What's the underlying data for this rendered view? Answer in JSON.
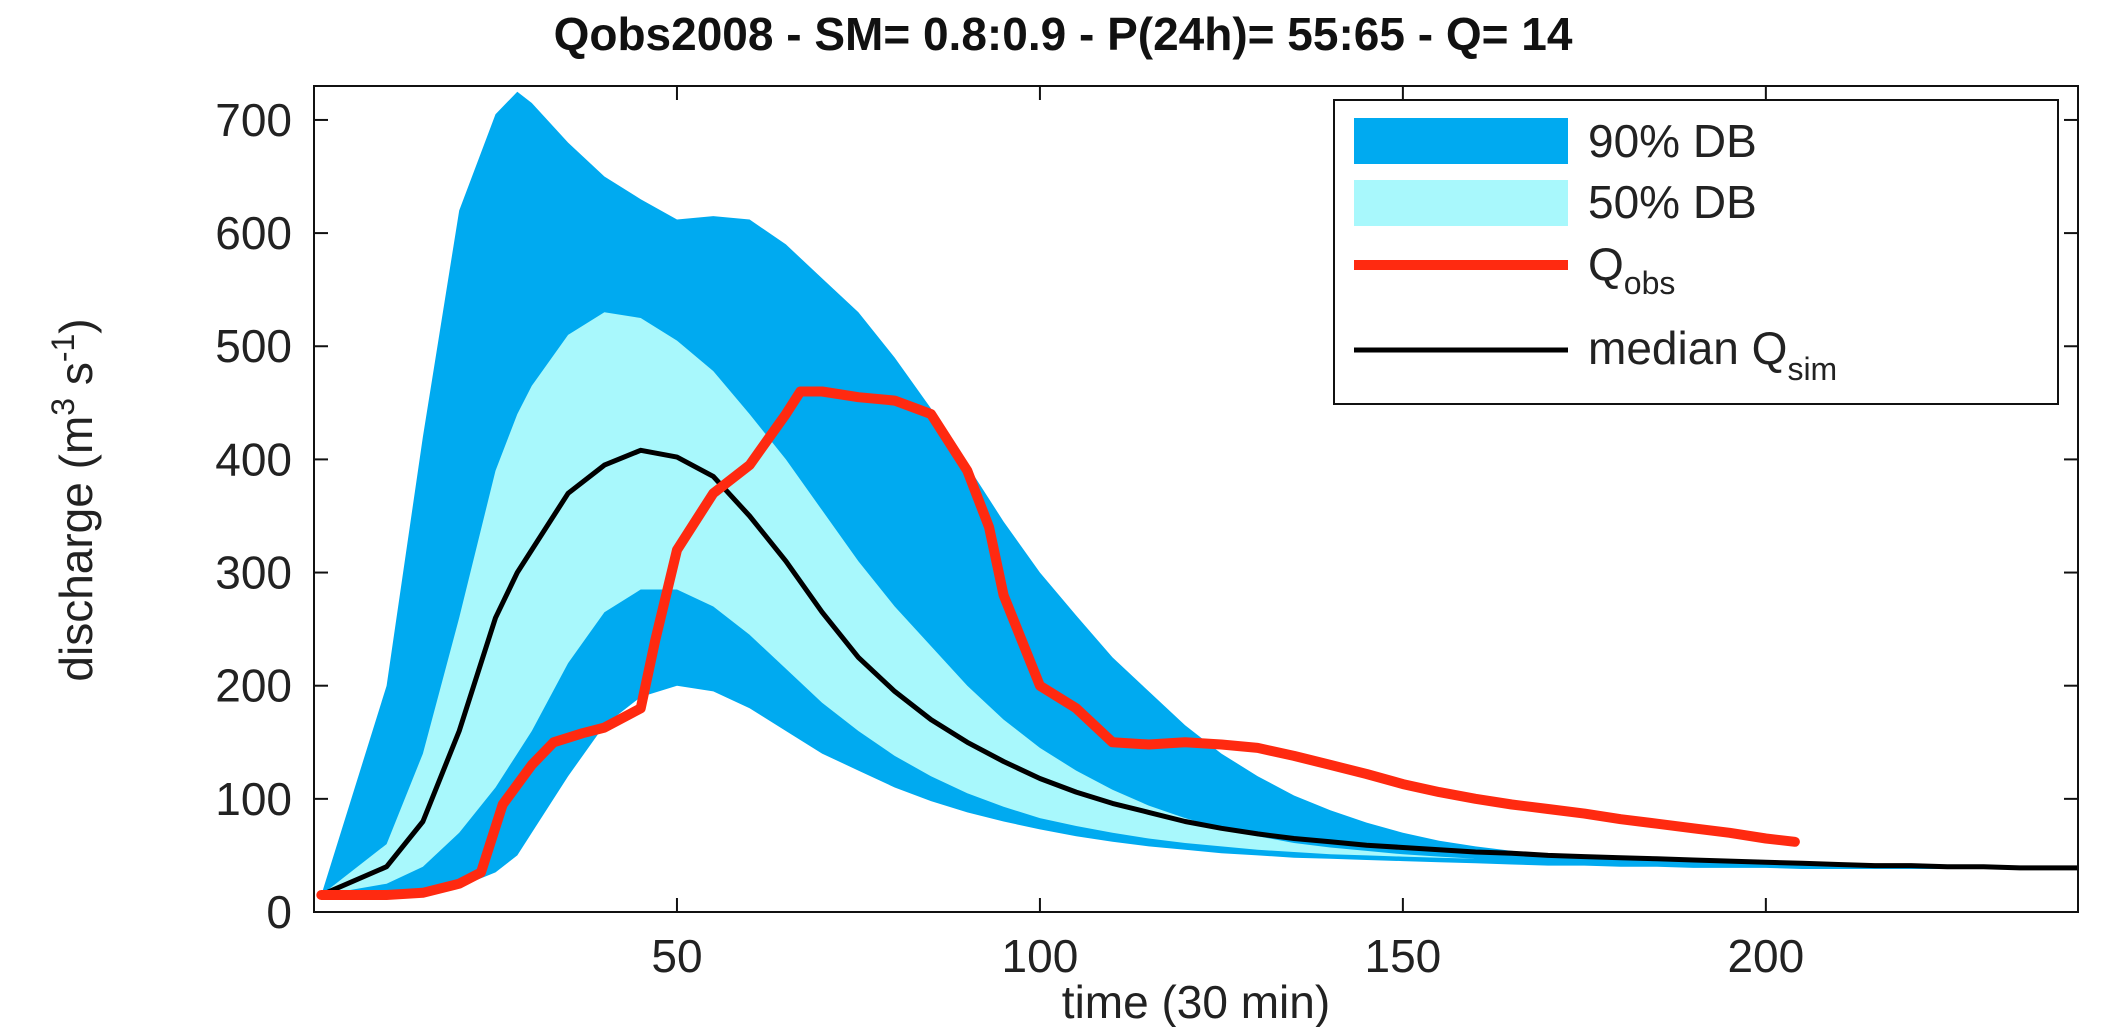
{
  "chart_data": {
    "type": "area",
    "title": "Qobs2008 - SM= 0.8:0.9 - P(24h)= 55:65 - Q= 14",
    "xlabel": "time (30 min)",
    "ylabel": {
      "base": "discharge (m",
      "sup1": "3",
      "mid": " s",
      "sup2": "-1",
      "end": ")"
    },
    "xlim": [
      0,
      243
    ],
    "ylim": [
      0,
      730
    ],
    "xticks": [
      50,
      100,
      150,
      200
    ],
    "yticks": [
      0,
      100,
      200,
      300,
      400,
      500,
      600,
      700
    ],
    "grid": false,
    "legend": {
      "placement": "top-right",
      "entries": [
        {
          "name": "90% DB",
          "kind": "patch",
          "color": "#00aaf0"
        },
        {
          "name": "50% DB",
          "kind": "patch",
          "color": "#a8f8fc"
        },
        {
          "name": "Q",
          "sub": "obs",
          "kind": "line",
          "color": "#ff2a10"
        },
        {
          "name": "median Q",
          "sub": "sim",
          "kind": "line",
          "color": "#000000"
        }
      ]
    },
    "x": [
      1,
      10,
      15,
      20,
      25,
      28,
      30,
      35,
      40,
      45,
      50,
      55,
      60,
      65,
      70,
      75,
      80,
      85,
      90,
      95,
      100,
      105,
      110,
      115,
      120,
      125,
      130,
      135,
      140,
      145,
      150,
      155,
      160,
      165,
      170,
      175,
      180,
      185,
      190,
      195,
      200,
      205,
      210,
      215,
      220,
      225,
      230,
      235,
      240,
      243
    ],
    "series": [
      {
        "key": "band90_upper",
        "values": [
          15,
          200,
          420,
          620,
          705,
          725,
          715,
          680,
          650,
          630,
          612,
          615,
          612,
          590,
          560,
          530,
          490,
          445,
          395,
          345,
          300,
          262,
          225,
          195,
          165,
          140,
          120,
          103,
          90,
          79,
          70,
          63,
          58,
          54,
          51,
          49,
          47,
          46,
          45,
          44,
          43,
          42,
          41,
          40,
          40,
          39,
          39,
          38,
          38,
          38
        ]
      },
      {
        "key": "band50_upper",
        "values": [
          15,
          60,
          140,
          260,
          390,
          440,
          465,
          510,
          530,
          525,
          505,
          478,
          440,
          400,
          355,
          310,
          270,
          235,
          200,
          170,
          145,
          125,
          108,
          94,
          83,
          74,
          67,
          61,
          57,
          54,
          51,
          49,
          47,
          46,
          45,
          44,
          43,
          42,
          41,
          41,
          40,
          40,
          39,
          39,
          39,
          38,
          38,
          38,
          38,
          38
        ]
      },
      {
        "key": "band50_lower",
        "values": [
          15,
          25,
          40,
          70,
          110,
          140,
          160,
          220,
          265,
          285,
          285,
          270,
          245,
          215,
          185,
          160,
          138,
          120,
          105,
          93,
          83,
          76,
          70,
          65,
          61,
          58,
          55,
          53,
          51,
          50,
          49,
          48,
          47,
          46,
          45,
          44,
          43,
          42,
          41,
          41,
          40,
          40,
          39,
          39,
          39,
          38,
          38,
          38,
          38,
          38
        ]
      },
      {
        "key": "band90_lower",
        "values": [
          15,
          16,
          18,
          22,
          35,
          50,
          70,
          120,
          165,
          190,
          200,
          195,
          180,
          160,
          140,
          125,
          110,
          98,
          88,
          80,
          73,
          67,
          62,
          58,
          55,
          52,
          50,
          48,
          47,
          46,
          45,
          44,
          43,
          42,
          41,
          41,
          40,
          40,
          39,
          39,
          39,
          38,
          38,
          38,
          38,
          38,
          38,
          38,
          38,
          38
        ]
      },
      {
        "key": "median_qsim",
        "values": [
          15,
          40,
          80,
          160,
          260,
          300,
          320,
          370,
          395,
          408,
          402,
          385,
          350,
          310,
          265,
          225,
          195,
          170,
          150,
          133,
          118,
          106,
          96,
          88,
          80,
          74,
          69,
          65,
          62,
          59,
          57,
          55,
          53,
          52,
          50,
          49,
          48,
          47,
          46,
          45,
          44,
          43,
          42,
          41,
          41,
          40,
          40,
          39,
          39,
          39
        ]
      },
      {
        "key": "q_obs",
        "x": [
          1,
          10,
          15,
          20,
          23,
          26,
          30,
          33,
          37,
          40,
          45,
          47,
          50,
          55,
          60,
          65,
          67,
          70,
          75,
          80,
          85,
          90,
          93,
          95,
          100,
          105,
          110,
          115,
          120,
          125,
          130,
          135,
          140,
          145,
          150,
          155,
          160,
          165,
          170,
          175,
          180,
          185,
          190,
          195,
          200,
          204
        ],
        "values": [
          15,
          15,
          17,
          25,
          35,
          95,
          130,
          150,
          158,
          163,
          180,
          240,
          320,
          370,
          395,
          440,
          460,
          460,
          455,
          452,
          440,
          390,
          340,
          280,
          200,
          180,
          150,
          148,
          150,
          148,
          145,
          138,
          130,
          122,
          113,
          106,
          100,
          95,
          91,
          87,
          82,
          78,
          74,
          70,
          65,
          62
        ]
      }
    ]
  }
}
